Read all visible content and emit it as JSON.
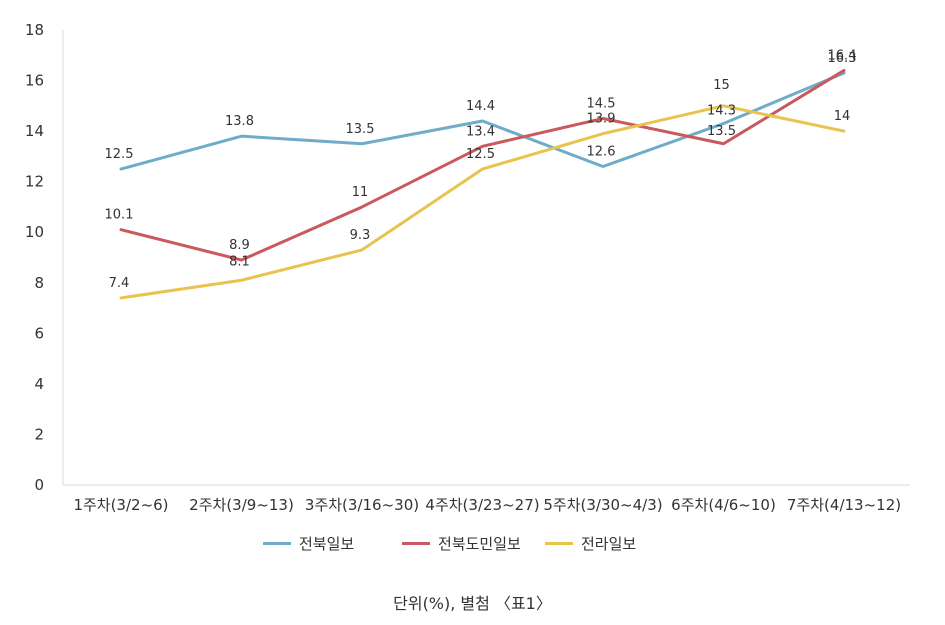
{
  "chart_data": {
    "type": "line",
    "title": "",
    "xlabel": "",
    "ylabel": "",
    "ylim": [
      0,
      18
    ],
    "yticks": [
      0,
      2,
      4,
      6,
      8,
      10,
      12,
      14,
      16,
      18
    ],
    "grid": false,
    "legend_position": "bottom",
    "categories": [
      "1주차(3/2~6)",
      "2주차(3/9~13)",
      "3주차(3/16~30)",
      "4주차(3/23~27)",
      "5주차(3/30~4/3)",
      "6주차(4/6~10)",
      "7주차(4/13~12)"
    ],
    "series": [
      {
        "name": "전북일보",
        "color": "#6FACC8",
        "values": [
          12.5,
          13.8,
          13.5,
          14.4,
          12.6,
          14.3,
          16.3
        ],
        "labels": [
          "12.5",
          "13.8",
          "13.5",
          "14.4",
          "12.6",
          "14.3",
          "16.3"
        ]
      },
      {
        "name": "전북도민일보",
        "color": "#C9595C",
        "values": [
          10.1,
          8.9,
          11,
          13.4,
          14.5,
          13.5,
          16.4
        ],
        "labels": [
          "10.1",
          "8.9",
          "11",
          "13.4",
          "14.5",
          "13.5",
          "16.4"
        ]
      },
      {
        "name": "전라일보",
        "color": "#E8C44E",
        "values": [
          7.4,
          8.1,
          9.3,
          12.5,
          13.9,
          15,
          14
        ],
        "labels": [
          "7.4",
          "8.1",
          "9.3",
          "12.5",
          "13.9",
          "15",
          "14"
        ]
      }
    ]
  },
  "caption": "단위(%), 별첨 〈표1〉"
}
